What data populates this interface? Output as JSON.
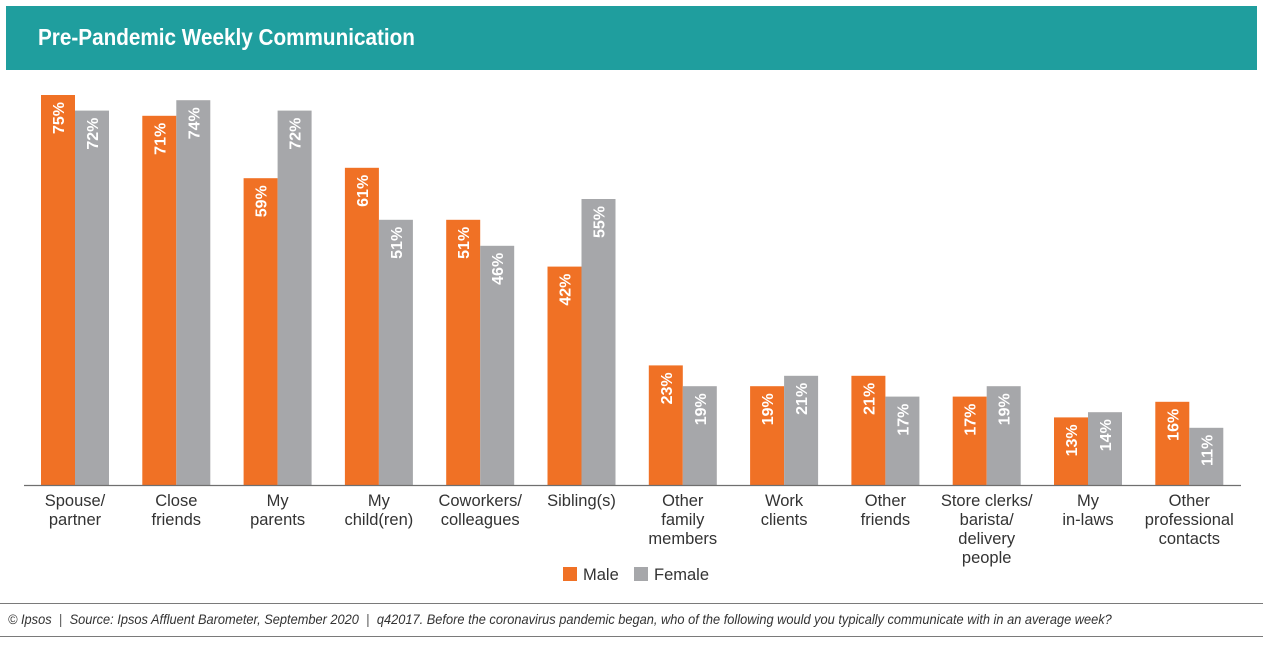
{
  "title": "Pre-Pandemic Weekly Communication",
  "footer": {
    "copyright": "© Ipsos",
    "separator": "|",
    "source": "Source: Ipsos Affluent Barometer, September 2020",
    "question": "q42017. Before the coronavirus pandemic began, who of the following would you typically communicate with in an average week?"
  },
  "colors": {
    "title_bar": "#1f9e9e",
    "male": "#f07125",
    "female": "#a6a7aa"
  },
  "chart_data": {
    "type": "bar",
    "title": "Pre-Pandemic Weekly Communication",
    "xlabel": "",
    "ylabel": "",
    "ylim": [
      0,
      75
    ],
    "grid": false,
    "legend_position": "bottom",
    "value_unit": "%",
    "categories": [
      [
        "Spouse/",
        "partner"
      ],
      [
        "Close",
        "friends"
      ],
      [
        "My",
        "parents"
      ],
      [
        "My",
        "child(ren)"
      ],
      [
        "Coworkers/",
        "colleagues"
      ],
      [
        "Sibling(s)"
      ],
      [
        "Other",
        "family",
        "members"
      ],
      [
        "Work",
        "clients"
      ],
      [
        "Other",
        "friends"
      ],
      [
        "Store clerks/",
        "barista/",
        "delivery",
        "people"
      ],
      [
        "My",
        "in-laws"
      ],
      [
        "Other",
        "professional",
        "contacts"
      ]
    ],
    "series": [
      {
        "name": "Male",
        "color": "#f07125",
        "values": [
          75,
          71,
          59,
          61,
          51,
          42,
          23,
          19,
          21,
          17,
          13,
          16
        ]
      },
      {
        "name": "Female",
        "color": "#a6a7aa",
        "values": [
          72,
          74,
          72,
          51,
          46,
          55,
          19,
          21,
          17,
          19,
          14,
          11
        ]
      }
    ]
  }
}
